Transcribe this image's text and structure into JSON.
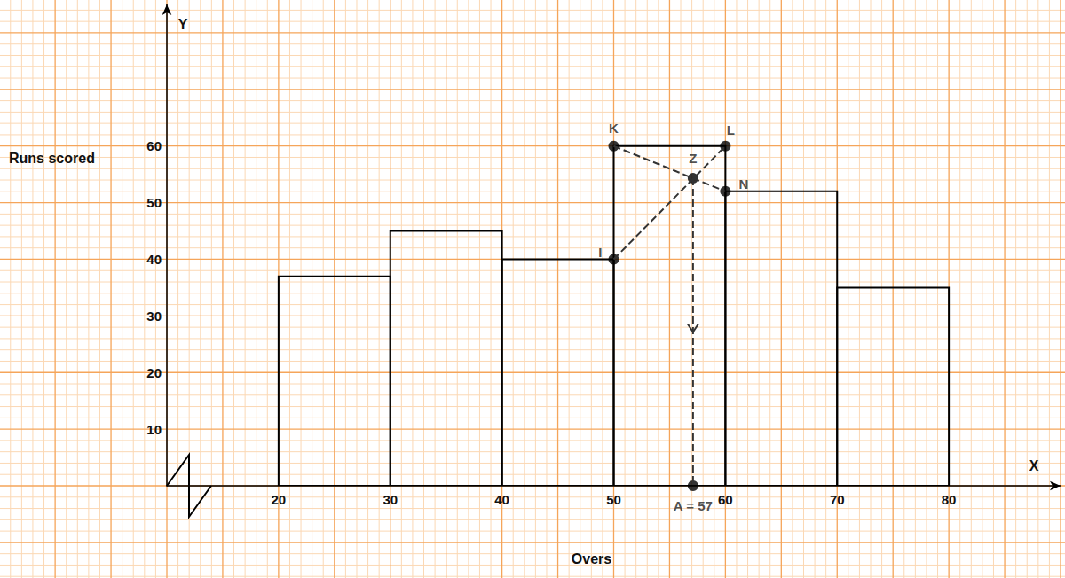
{
  "chart_data": {
    "type": "histogram",
    "x_label": "Overs",
    "y_label": "Runs scored",
    "x_axis_name": "X",
    "y_axis_name": "Y",
    "bins": [
      20,
      30,
      40,
      50,
      60,
      70,
      80
    ],
    "values": [
      37,
      45,
      40,
      60,
      52,
      35
    ],
    "color": "#000000",
    "xlim": [
      10,
      90
    ],
    "ylim": [
      0,
      85
    ],
    "xticks": [
      20,
      30,
      40,
      50,
      60,
      70,
      80
    ],
    "yticks": [
      10,
      20,
      30,
      40,
      50,
      60
    ],
    "grid": true,
    "points": [
      {
        "name": "K",
        "x": 50,
        "y": 60
      },
      {
        "name": "L",
        "x": 60,
        "y": 60
      },
      {
        "name": "I",
        "x": 50,
        "y": 40
      },
      {
        "name": "N",
        "x": 60,
        "y": 52
      },
      {
        "name": "Z",
        "x": 57.1,
        "y": 54.3
      },
      {
        "name": "A = 57",
        "x": 57.1,
        "y": 0
      }
    ],
    "lines": [
      [
        "K",
        "N"
      ],
      [
        "I",
        "L"
      ],
      [
        "Z",
        "A = 57"
      ]
    ],
    "line_style": "dashed"
  }
}
